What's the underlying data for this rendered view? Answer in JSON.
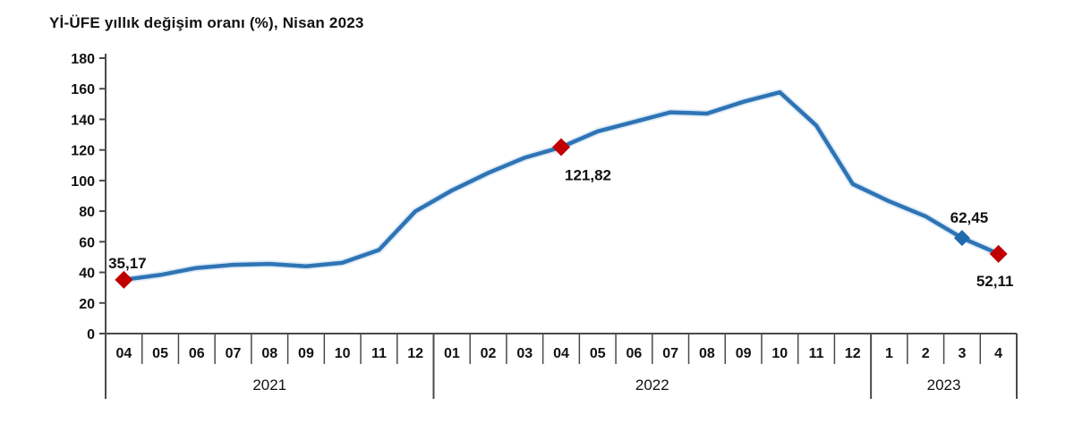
{
  "title": "Yİ-ÜFE yıllık değişim oranı (%), Nisan 2023",
  "chart_data": {
    "type": "line",
    "title": "Yİ-ÜFE yıllık değişim oranı (%), Nisan 2023",
    "xlabel": "",
    "ylabel": "",
    "ylim": [
      0,
      180
    ],
    "ytick_step": 20,
    "y_ticks": [
      0,
      20,
      40,
      60,
      80,
      100,
      120,
      140,
      160,
      180
    ],
    "grid": false,
    "legend": "none",
    "groups": [
      {
        "year": "2021",
        "months": [
          "04",
          "05",
          "06",
          "07",
          "08",
          "09",
          "10",
          "11",
          "12"
        ]
      },
      {
        "year": "2022",
        "months": [
          "01",
          "02",
          "03",
          "04",
          "05",
          "06",
          "07",
          "08",
          "09",
          "10",
          "11",
          "12"
        ]
      },
      {
        "year": "2023",
        "months": [
          "1",
          "2",
          "3",
          "4"
        ]
      }
    ],
    "series": [
      {
        "name": "Yİ-ÜFE yıllık değişim oranı (%)",
        "values": [
          35.17,
          38.33,
          42.89,
          44.92,
          45.52,
          43.96,
          46.31,
          54.62,
          79.89,
          93.53,
          105.01,
          114.97,
          121.82,
          132.16,
          138.31,
          144.61,
          143.75,
          151.5,
          157.69,
          136.02,
          97.72,
          86.46,
          76.61,
          62.45,
          52.11
        ]
      }
    ],
    "annotations": [
      {
        "index": 0,
        "label": "35,17",
        "marker": "red-diamond",
        "position": "above"
      },
      {
        "index": 12,
        "label": "121,82",
        "marker": "red-diamond",
        "position": "below"
      },
      {
        "index": 23,
        "label": "62,45",
        "marker": "blue-diamond",
        "position": "above"
      },
      {
        "index": 24,
        "label": "52,11",
        "marker": "red-diamond",
        "position": "below"
      }
    ],
    "colors": {
      "line": "#2E74B5",
      "line_halo": "#BFD9EF",
      "red_marker": "#C00000",
      "blue_marker": "#1F6BAE",
      "axis": "#4A4A4A",
      "text": "#111111"
    }
  }
}
